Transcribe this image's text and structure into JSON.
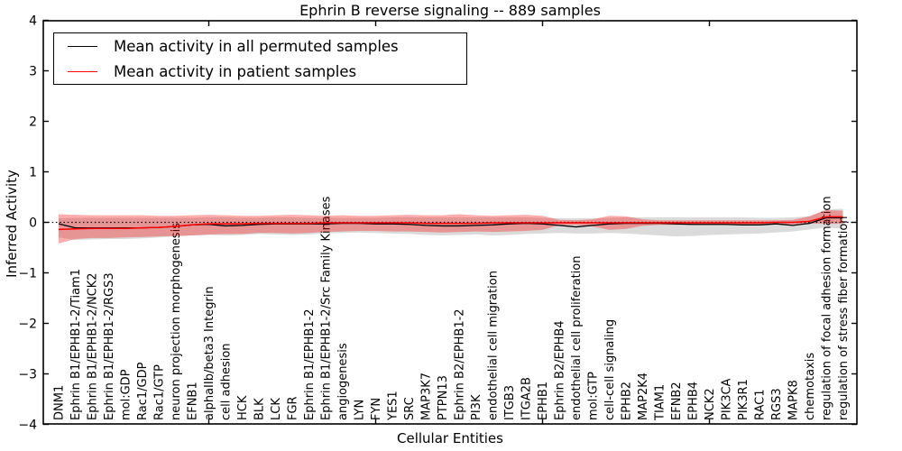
{
  "chart_data": {
    "type": "line",
    "title": "Ephrin B reverse signaling -- 889 samples",
    "xlabel": "Cellular Entities",
    "ylabel": "Inferred Activity",
    "ylim": [
      -4,
      4
    ],
    "yticks": [
      -4,
      -3,
      -2,
      -1,
      0,
      1,
      2,
      3,
      4
    ],
    "x_major_ticks": [
      10,
      20,
      30,
      40
    ],
    "grid": false,
    "legend_position": "upper left",
    "zero_line": {
      "y": 0,
      "style": "dotted",
      "color": "#000000"
    },
    "categories": [
      "DNM1",
      "Ephrin B1/EPHB1-2/Tiam1",
      "Ephrin B1/EPHB1-2/NCK2",
      "Ephrin B1/EPHB1-2/RGS3",
      "mol:GDP",
      "Rac1/GDP",
      "Rac1/GTP",
      "neuron projection morphogenesis",
      "EFNB1",
      "alphaIIb/beta3 Integrin",
      "cell adhesion",
      "HCK",
      "BLK",
      "LCK",
      "FGR",
      "Ephrin B1/EPHB1-2",
      "Ephrin B1/EPHB1-2/Src Family Kinases",
      "angiogenesis",
      "LYN",
      "FYN",
      "YES1",
      "SRC",
      "MAP3K7",
      "PTPN13",
      "Ephrin B2/EPHB1-2",
      "PI3K",
      "endothelial cell migration",
      "ITGB3",
      "ITGA2B",
      "EPHB1",
      "Ephrin B2/EPHB4",
      "endothelial cell proliferation",
      "mol:GTP",
      "cell-cell signaling",
      "EPHB2",
      "MAP2K4",
      "TIAM1",
      "EFNB2",
      "EPHB4",
      "NCK2",
      "PIK3CA",
      "PIK3R1",
      "RAC1",
      "RGS3",
      "MAPK8",
      "chemotaxis",
      "regulation of focal adhesion formation",
      "regulation of stress fiber formation"
    ],
    "series": [
      {
        "name": "Mean activity in all permuted samples",
        "color": "#000000",
        "values": [
          -0.03,
          -0.11,
          -0.11,
          -0.11,
          -0.11,
          -0.11,
          -0.1,
          -0.08,
          -0.05,
          -0.04,
          -0.07,
          -0.06,
          -0.04,
          -0.03,
          -0.03,
          -0.03,
          -0.03,
          -0.02,
          -0.02,
          -0.03,
          -0.03,
          -0.04,
          -0.06,
          -0.07,
          -0.07,
          -0.06,
          -0.05,
          -0.03,
          -0.02,
          -0.03,
          -0.06,
          -0.09,
          -0.06,
          -0.03,
          -0.02,
          -0.02,
          -0.02,
          -0.03,
          -0.04,
          -0.04,
          -0.04,
          -0.05,
          -0.05,
          -0.03,
          -0.06,
          -0.02,
          0.09,
          0.09
        ],
        "band": {
          "upper": [
            0.08,
            0.09,
            0.09,
            0.09,
            0.09,
            0.09,
            0.09,
            0.09,
            0.09,
            0.1,
            0.1,
            0.09,
            0.09,
            0.1,
            0.1,
            0.09,
            0.09,
            0.09,
            0.09,
            0.09,
            0.1,
            0.1,
            0.1,
            0.1,
            0.1,
            0.1,
            0.1,
            0.1,
            0.1,
            0.09,
            0.08,
            0.08,
            0.08,
            0.09,
            0.1,
            0.1,
            0.1,
            0.1,
            0.1,
            0.1,
            0.1,
            0.1,
            0.09,
            0.09,
            0.1,
            0.12,
            0.26,
            0.27
          ],
          "lower": [
            -0.3,
            -0.35,
            -0.34,
            -0.33,
            -0.33,
            -0.32,
            -0.3,
            -0.28,
            -0.26,
            -0.25,
            -0.26,
            -0.25,
            -0.23,
            -0.24,
            -0.25,
            -0.24,
            -0.22,
            -0.21,
            -0.2,
            -0.21,
            -0.22,
            -0.23,
            -0.25,
            -0.26,
            -0.25,
            -0.24,
            -0.26,
            -0.25,
            -0.23,
            -0.22,
            -0.21,
            -0.22,
            -0.22,
            -0.21,
            -0.22,
            -0.24,
            -0.26,
            -0.28,
            -0.27,
            -0.25,
            -0.24,
            -0.23,
            -0.22,
            -0.2,
            -0.18,
            -0.14,
            -0.1,
            -0.13
          ],
          "color": "#000000",
          "opacity": 0.14
        }
      },
      {
        "name": "Mean activity in patient samples",
        "color": "#ff0000",
        "values": [
          -0.14,
          -0.13,
          -0.12,
          -0.12,
          -0.12,
          -0.11,
          -0.1,
          -0.08,
          -0.05,
          -0.03,
          -0.03,
          -0.03,
          -0.02,
          -0.02,
          -0.02,
          -0.02,
          -0.01,
          -0.01,
          -0.01,
          -0.01,
          -0.01,
          -0.01,
          -0.02,
          -0.02,
          -0.02,
          -0.02,
          -0.01,
          -0.01,
          -0.01,
          -0.01,
          -0.01,
          -0.01,
          -0.01,
          -0.01,
          -0.01,
          -0.01,
          -0.01,
          -0.01,
          -0.01,
          -0.01,
          -0.01,
          -0.01,
          -0.01,
          0.0,
          0.0,
          0.02,
          0.11,
          0.11
        ],
        "band": {
          "upper": [
            0.16,
            0.15,
            0.14,
            0.14,
            0.14,
            0.14,
            0.13,
            0.13,
            0.14,
            0.15,
            0.14,
            0.13,
            0.13,
            0.14,
            0.15,
            0.14,
            0.13,
            0.14,
            0.13,
            0.13,
            0.14,
            0.15,
            0.14,
            0.14,
            0.16,
            0.14,
            0.13,
            0.14,
            0.15,
            0.13,
            0.05,
            0.04,
            0.06,
            0.13,
            0.12,
            0.06,
            0.04,
            0.04,
            0.04,
            0.04,
            0.04,
            0.04,
            0.04,
            0.04,
            0.05,
            0.12,
            0.24,
            0.23
          ],
          "lower": [
            -0.42,
            -0.33,
            -0.31,
            -0.31,
            -0.3,
            -0.29,
            -0.28,
            -0.27,
            -0.26,
            -0.24,
            -0.23,
            -0.23,
            -0.21,
            -0.21,
            -0.22,
            -0.21,
            -0.19,
            -0.18,
            -0.17,
            -0.17,
            -0.18,
            -0.18,
            -0.19,
            -0.2,
            -0.19,
            -0.18,
            -0.19,
            -0.18,
            -0.17,
            -0.15,
            -0.06,
            -0.05,
            -0.08,
            -0.15,
            -0.13,
            -0.07,
            -0.05,
            -0.05,
            -0.05,
            -0.05,
            -0.05,
            -0.05,
            -0.05,
            -0.04,
            -0.04,
            -0.02,
            -0.03,
            -0.03
          ],
          "color": "#ff0000",
          "opacity": 0.32
        }
      }
    ]
  }
}
